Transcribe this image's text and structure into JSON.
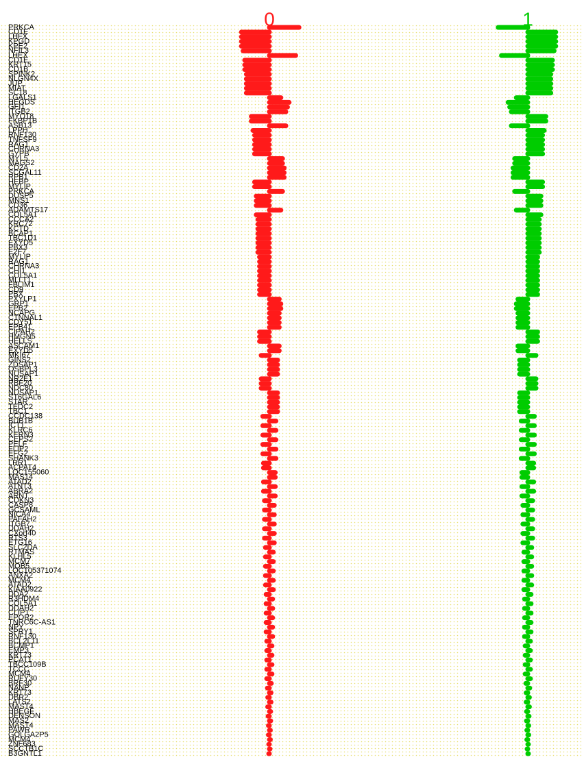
{
  "chart_data": {
    "type": "centroid",
    "categories": [
      "PRKCA",
      "CD1E",
      "LHFX",
      "KPGD",
      "KPE2",
      "NFIL3",
      "LHEX",
      "CD1E",
      "KRT15",
      "CD1B",
      "SPINK2",
      "NLGN4X",
      "JUP",
      "MIAT",
      "SC18",
      "LGALS1",
      "HEGDS",
      "GFI1",
      "ITGB2",
      "MYO18",
      "FKBP1B",
      "ASB13",
      "LPPH",
      "RNF130",
      "TNFSF9",
      "RAG1",
      "CHRNA3",
      "GYPB",
      "MYL5",
      "MAGS2",
      "CD2A",
      "SCGAL11",
      "RPB1",
      "HEBP",
      "MYLIP",
      "PRKCA",
      "DUSP5",
      "MNS1",
      "CD36",
      "ADAMTS17",
      "COL5A1",
      "CCCA2",
      "KRC72",
      "KCTD",
      "BCAP1",
      "TBC1D1",
      "EXYD5",
      "PBX3",
      "E2F7",
      "MYLIP",
      "RAG1",
      "CHRNA3",
      "CHI1",
      "COL5A1",
      "MLLT1",
      "FBLIM1",
      "CD9",
      "PBX",
      "PXYLP1",
      "GRP1",
      "EPB2",
      "NCAPG",
      "CTNNAL1",
      "CDY51",
      "EPB41",
      "CIPAH2",
      "HMGN5",
      "HELLS",
      "ASCAM1",
      "EXYD5",
      "MKI67",
      "GINS2",
      "ZDSAP1",
      "OSBPL3",
      "NUSAP1",
      "NR2E1",
      "RBF20",
      "NDC80",
      "NUSAP1",
      "ST6GAL6",
      "STAR",
      "TEDC2",
      "TBC1",
      "CCDC138",
      "BUB1B",
      "ICT1",
      "KLRC6",
      "KERN3",
      "CEPS2",
      "PELF",
      "FLIP2",
      "EFG2",
      "SHANK3",
      "LRR1",
      "ACPAT4",
      "LOC155060",
      "MAS14",
      "ATAD2",
      "ATNT3",
      "ABRA2",
      "ARNT",
      "CDKN3",
      "CASP8",
      "GCSAML",
      "NICA4",
      "PAFAH2",
      "ITGB7",
      "DDAH2",
      "CXorf40",
      "RTS3",
      "ETG16",
      "SLC2DA",
      "RTMAS",
      "KLHL5",
      "MCM7",
      "MOB5",
      "LOC105371074",
      "ANXA2",
      "MCM4",
      "ATAD2",
      "KIAA0922",
      "DDA2",
      "R3HDM4",
      "COL5A1",
      "DDAH2",
      "CLIP1",
      "EPOR2",
      "TNRC6C-AS1",
      "NPY",
      "SPRY1",
      "RNF130",
      "BCL2L11",
      "BCMP1",
      "EMP3",
      "KRT73",
      "PCAT1",
      "TBCC109B",
      "TCCC",
      "MCM4",
      "RUFY30",
      "BRF30",
      "NANP",
      "KRT73",
      "DBR2",
      "LATS2",
      "MAST4",
      "HBEGF",
      "DENSON",
      "MAS2",
      "MAST4",
      "PAWR",
      "GOLGA2P5",
      "MCM4",
      "ZNF683",
      "SCCTB1C",
      "B3GNTL1"
    ],
    "xlim": [
      -1,
      1
    ],
    "series": [
      {
        "name": "0",
        "color": "#ff1a1a",
        "values": [
          0.9,
          -0.85,
          -0.85,
          -0.85,
          -0.85,
          -0.8,
          0.8,
          -0.75,
          -0.75,
          -0.75,
          -0.7,
          -0.7,
          -0.7,
          -0.7,
          -0.7,
          0.35,
          0.6,
          0.55,
          0.5,
          -0.55,
          -0.55,
          0.5,
          -0.5,
          -0.45,
          -0.45,
          -0.45,
          -0.45,
          -0.45,
          0.4,
          0.4,
          0.45,
          0.45,
          0.45,
          -0.45,
          -0.45,
          0.4,
          -0.4,
          -0.4,
          -0.4,
          0.35,
          -0.4,
          -0.35,
          -0.35,
          -0.35,
          -0.35,
          -0.35,
          -0.35,
          -0.35,
          -0.35,
          -0.3,
          -0.3,
          -0.3,
          -0.3,
          -0.3,
          -0.3,
          -0.3,
          -0.3,
          -0.3,
          0.3,
          0.35,
          0.35,
          0.3,
          0.3,
          0.3,
          0.3,
          -0.3,
          -0.3,
          -0.3,
          0.3,
          0.3,
          -0.25,
          0.25,
          0.25,
          0.25,
          0.25,
          -0.25,
          -0.25,
          -0.25,
          0.25,
          0.25,
          0.25,
          0.25,
          0.25,
          -0.2,
          0.2,
          -0.2,
          0.2,
          -0.2,
          0.2,
          -0.2,
          0.2,
          -0.2,
          0.2,
          -0.18,
          -0.18,
          0.18,
          0.18,
          -0.18,
          0.18,
          -0.18,
          0.18,
          -0.15,
          0.15,
          -0.15,
          0.15,
          -0.15,
          0.15,
          -0.15,
          0.15,
          -0.15,
          0.15,
          -0.12,
          0.12,
          -0.12,
          0.12,
          -0.12,
          0.12,
          -0.12,
          0.12,
          -0.12,
          0.12,
          -0.1,
          0.1,
          -0.1,
          0.1,
          -0.1,
          0.1,
          -0.1,
          0.1,
          -0.1,
          0.1,
          -0.08,
          0.08,
          -0.08,
          0.08,
          -0.08,
          0.08,
          -0.08,
          0.08,
          -0.08,
          0.06,
          -0.06,
          0.05,
          -0.05,
          0.05,
          -0.05,
          0.04,
          -0.04,
          0.04,
          -0.03,
          0.03,
          -0.03,
          0.03,
          -0.02,
          0.02,
          -0.02
        ]
      },
      {
        "name": "1",
        "color": "#00cc00",
        "values": [
          -0.9,
          0.85,
          0.85,
          0.85,
          0.85,
          0.8,
          -0.8,
          0.75,
          0.75,
          0.75,
          0.7,
          0.7,
          0.7,
          0.7,
          0.7,
          -0.35,
          -0.6,
          -0.55,
          -0.5,
          0.55,
          0.55,
          -0.5,
          0.5,
          0.45,
          0.45,
          0.45,
          0.45,
          0.45,
          -0.4,
          -0.4,
          -0.45,
          -0.45,
          -0.45,
          0.45,
          0.45,
          -0.4,
          0.4,
          0.4,
          0.4,
          -0.35,
          0.4,
          0.35,
          0.35,
          0.35,
          0.35,
          0.35,
          0.35,
          0.35,
          0.35,
          0.3,
          0.3,
          0.3,
          0.3,
          0.3,
          0.3,
          0.3,
          0.3,
          0.3,
          -0.3,
          -0.35,
          -0.35,
          -0.3,
          -0.3,
          -0.3,
          -0.3,
          0.3,
          0.3,
          0.3,
          -0.3,
          -0.3,
          0.25,
          -0.25,
          -0.25,
          -0.25,
          -0.25,
          0.25,
          0.25,
          0.25,
          -0.25,
          -0.25,
          -0.25,
          -0.25,
          -0.25,
          0.2,
          -0.2,
          0.2,
          -0.2,
          0.2,
          -0.2,
          0.2,
          -0.2,
          0.2,
          -0.2,
          0.18,
          0.18,
          -0.18,
          -0.18,
          0.18,
          -0.18,
          0.18,
          -0.18,
          0.15,
          -0.15,
          0.15,
          -0.15,
          0.15,
          -0.15,
          0.15,
          -0.15,
          0.15,
          -0.15,
          0.12,
          -0.12,
          0.12,
          -0.12,
          0.12,
          -0.12,
          0.12,
          -0.12,
          0.12,
          -0.12,
          0.1,
          -0.1,
          0.1,
          -0.1,
          0.1,
          -0.1,
          0.1,
          -0.1,
          0.1,
          -0.1,
          0.08,
          -0.08,
          0.08,
          -0.08,
          0.08,
          -0.08,
          0.08,
          -0.08,
          0.08,
          -0.06,
          0.06,
          -0.05,
          0.05,
          -0.05,
          0.05,
          -0.04,
          0.04,
          -0.04,
          0.03,
          -0.03,
          0.03,
          -0.03,
          0.02,
          -0.02,
          0.02
        ]
      }
    ]
  }
}
